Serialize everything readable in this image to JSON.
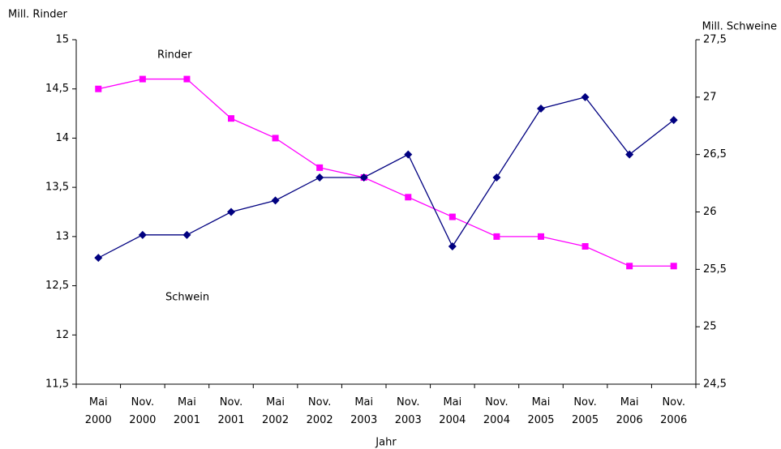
{
  "chart_data": {
    "type": "line",
    "y_label": "Mill. Rinder",
    "y2_label": "Mill. Schweine",
    "x_label": "Jahr",
    "annotations": [
      "Rinder",
      "Schwein"
    ],
    "categories": [
      "Mai 2000",
      "Nov. 2000",
      "Mai 2001",
      "Nov. 2001",
      "Mai 2002",
      "Nov. 2002",
      "Mai 2003",
      "Nov. 2003",
      "Mai 2004",
      "Nov. 2004",
      "Mai 2005",
      "Nov. 2005",
      "Mai 2006",
      "Nov. 2006"
    ],
    "series": [
      {
        "name": "Rinder",
        "color": "#ff00ff",
        "marker": "square",
        "axis": "y",
        "values": [
          14.5,
          14.6,
          14.6,
          14.2,
          14.0,
          13.7,
          13.6,
          13.4,
          13.2,
          13.0,
          13.0,
          12.9,
          12.7,
          12.7
        ]
      },
      {
        "name": "Schwein",
        "color": "#000080",
        "marker": "diamond",
        "axis": "y2",
        "values": [
          25.6,
          25.8,
          25.8,
          26.0,
          26.1,
          26.3,
          26.3,
          26.5,
          25.7,
          26.3,
          26.9,
          27.0,
          26.5,
          26.8
        ]
      }
    ],
    "ylim": [
      11.5,
      15
    ],
    "yticks": [
      {
        "value": 11.5,
        "label": "11,5"
      },
      12,
      {
        "value": 12.5,
        "label": "12,5"
      },
      13,
      {
        "value": 13.5,
        "label": "13,5"
      },
      14,
      {
        "value": 14.5,
        "label": "14,5"
      },
      15
    ],
    "y2lim": [
      24.5,
      27.5
    ],
    "y2ticks": [
      {
        "value": 24.5,
        "label": "24,5"
      },
      25,
      {
        "value": 25.5,
        "label": "25,5"
      },
      26,
      {
        "value": 26.5,
        "label": "26,5"
      },
      27,
      {
        "value": 27.5,
        "label": "27,5"
      }
    ],
    "grid": false
  }
}
